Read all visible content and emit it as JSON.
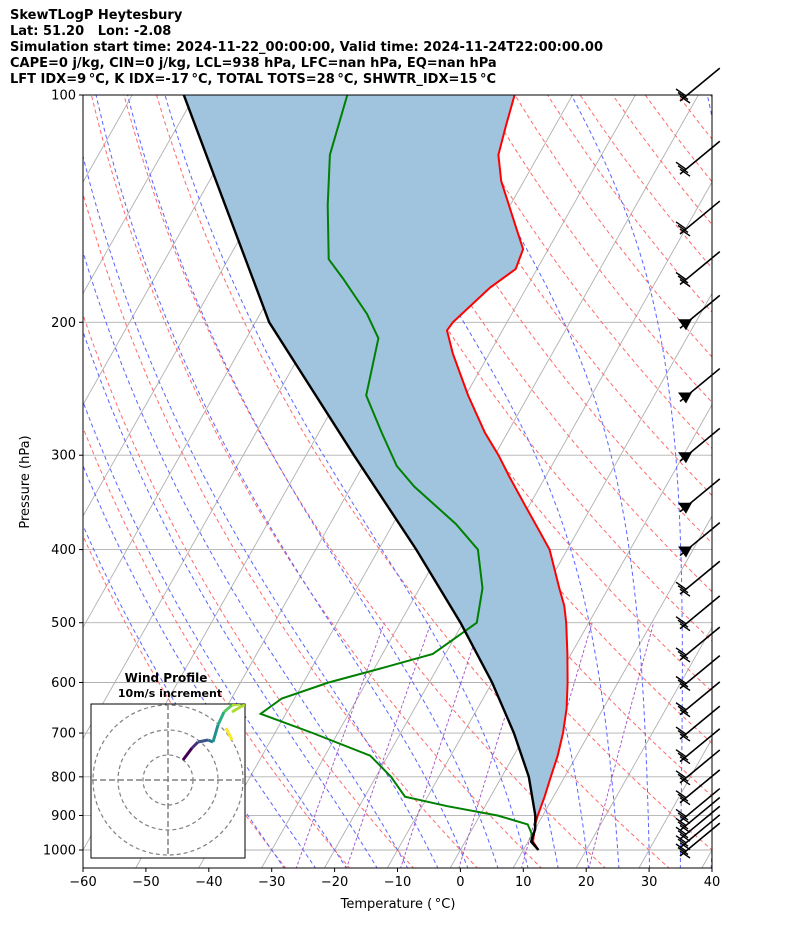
{
  "header": {
    "lines": [
      "SkewTLogP Heytesbury",
      "Lat: 51.20   Lon: -2.08",
      "Simulation start time: 2024-11-22_00:00:00, Valid time: 2024-11-24T22:00:00.00",
      "CAPE=0 j/kg, CIN=0 j/kg, LCL=938 hPa, LFC=nan hPa, EQ=nan hPa",
      "LFT IDX=9 °C, K IDX=-17 °C, TOTAL TOTS=28 °C, SHWTR_IDX=15 °C"
    ]
  },
  "chart_data": {
    "type": "line",
    "subtype": "skew-t log-p",
    "xlabel": "Temperature ( °C)",
    "ylabel": "Pressure (hPa)",
    "xlim": [
      -60,
      40
    ],
    "ylim": [
      1050,
      100
    ],
    "x_ticks": [
      "−60",
      "−50",
      "−40",
      "−30",
      "−20",
      "−10",
      "0",
      "10",
      "20",
      "30",
      "40"
    ],
    "y_ticks": [
      1000,
      900,
      800,
      700,
      600,
      500,
      400,
      300,
      200,
      100
    ],
    "y_scale": "log",
    "grid": true,
    "colors": {
      "temperature": "#ff0000",
      "dewpoint": "#008000",
      "parcel": "#000000",
      "cin_shading": "#a0c4de",
      "dry_adiabats": "#ff6a6a",
      "moist_adiabats": "#5a64ff",
      "mixing_ratio": "#a14fc4",
      "isotherms": "#b0b0b0"
    },
    "series": [
      {
        "key": "temperature",
        "points": [
          [
            1000,
            12.4
          ],
          [
            975,
            10.8
          ],
          [
            950,
            10.2
          ],
          [
            925,
            9.6
          ],
          [
            900,
            9.2
          ],
          [
            850,
            8.6
          ],
          [
            800,
            7.8
          ],
          [
            750,
            7.0
          ],
          [
            700,
            5.8
          ],
          [
            650,
            4.2
          ],
          [
            600,
            2.0
          ],
          [
            550,
            -0.6
          ],
          [
            500,
            -3.6
          ],
          [
            475,
            -5.4
          ],
          [
            450,
            -7.8
          ],
          [
            400,
            -12.8
          ],
          [
            380,
            -15.8
          ],
          [
            350,
            -20.6
          ],
          [
            320,
            -25.8
          ],
          [
            300,
            -29.4
          ],
          [
            280,
            -33.6
          ],
          [
            250,
            -39.6
          ],
          [
            220,
            -45.8
          ],
          [
            205,
            -48.8
          ],
          [
            200,
            -48.6
          ],
          [
            180,
            -45.8
          ],
          [
            170,
            -43.4
          ],
          [
            160,
            -44.0
          ],
          [
            150,
            -47.0
          ],
          [
            130,
            -53.6
          ],
          [
            120,
            -56.4
          ],
          [
            110,
            -57.8
          ],
          [
            100,
            -59.2
          ]
        ]
      },
      {
        "key": "dewpoint",
        "points": [
          [
            975,
            10.6
          ],
          [
            950,
            9.8
          ],
          [
            925,
            8.4
          ],
          [
            900,
            2.8
          ],
          [
            875,
            -6.0
          ],
          [
            850,
            -13.6
          ],
          [
            800,
            -17.6
          ],
          [
            750,
            -22.8
          ],
          [
            700,
            -34.0
          ],
          [
            660,
            -44.0
          ],
          [
            630,
            -42.0
          ],
          [
            600,
            -36.0
          ],
          [
            575,
            -29.0
          ],
          [
            550,
            -22.0
          ],
          [
            500,
            -17.8
          ],
          [
            450,
            -20.0
          ],
          [
            400,
            -24.2
          ],
          [
            370,
            -30.0
          ],
          [
            330,
            -40.0
          ],
          [
            310,
            -44.6
          ],
          [
            280,
            -50.0
          ],
          [
            250,
            -55.8
          ],
          [
            210,
            -59.0
          ],
          [
            195,
            -63.0
          ],
          [
            175,
            -70.0
          ],
          [
            165,
            -74.0
          ],
          [
            140,
            -79.0
          ],
          [
            120,
            -83.2
          ],
          [
            100,
            -85.8
          ]
        ]
      },
      {
        "key": "parcel",
        "points": [
          [
            975,
            10.6
          ],
          [
            1000,
            12.4
          ],
          [
            975,
            10.5
          ],
          [
            938,
            10.0
          ],
          [
            900,
            8.8
          ],
          [
            800,
            4.3
          ],
          [
            700,
            -2.0
          ],
          [
            600,
            -10.0
          ],
          [
            500,
            -20.4
          ],
          [
            400,
            -34.0
          ],
          [
            300,
            -52.4
          ],
          [
            200,
            -77.8
          ],
          [
            100,
            -111.8
          ]
        ]
      }
    ],
    "wind_barbs": {
      "pressures": [
        1000,
        975,
        950,
        925,
        900,
        850,
        800,
        750,
        700,
        650,
        600,
        550,
        500,
        450,
        400,
        350,
        300,
        250,
        200,
        175,
        150,
        125,
        100
      ]
    },
    "hodograph": {
      "title": "Wind Profile",
      "subtitle": "10m/s increment",
      "rings_ms": [
        10,
        20,
        30
      ]
    }
  }
}
